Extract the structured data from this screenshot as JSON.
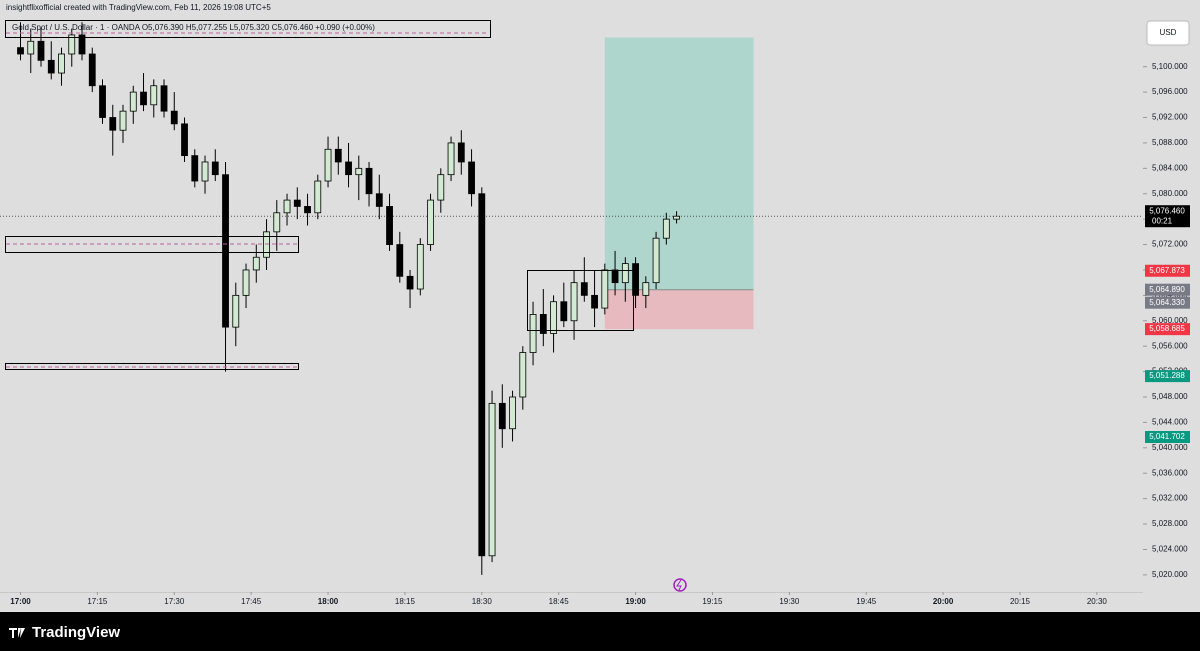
{
  "header": {
    "credit": "insightflixofficial created with TradingView.com, Feb 11, 2026 19:08 UTC+5"
  },
  "footer": {
    "brand": "TradingView"
  },
  "chart_data": {
    "type": "candlestick",
    "legend": "Gold Spot / U.S. Dollar · 1 · OANDA  O5,076.390  H5,077.255  L5,075.320  C5,076.460  +0.090 (+0.00%)",
    "currency": "USD",
    "up_color": "#d2ead2",
    "down_color": "#000000",
    "x": [
      "17:00",
      "17:02",
      "17:04",
      "17:06",
      "17:08",
      "17:10",
      "17:12",
      "17:14",
      "17:16",
      "17:18",
      "17:20",
      "17:22",
      "17:24",
      "17:26",
      "17:28",
      "17:30",
      "17:32",
      "17:34",
      "17:36",
      "17:38",
      "17:40",
      "17:42",
      "17:44",
      "17:46",
      "17:48",
      "17:50",
      "17:52",
      "17:54",
      "17:56",
      "17:58",
      "18:00",
      "18:02",
      "18:04",
      "18:06",
      "18:08",
      "18:10",
      "18:12",
      "18:14",
      "18:16",
      "18:18",
      "18:20",
      "18:22",
      "18:24",
      "18:26",
      "18:28",
      "18:30",
      "18:32",
      "18:34",
      "18:36",
      "18:38",
      "18:40",
      "18:42",
      "18:44",
      "18:46",
      "18:48",
      "18:50",
      "18:52",
      "18:54",
      "18:56",
      "18:58",
      "19:00",
      "19:02",
      "19:04",
      "19:06",
      "19:08"
    ],
    "ohlc": [
      [
        5103,
        5107,
        5101,
        5102
      ],
      [
        5102,
        5106,
        5099,
        5104
      ],
      [
        5104,
        5106,
        5100,
        5101
      ],
      [
        5101,
        5104,
        5098,
        5099
      ],
      [
        5099,
        5103,
        5097,
        5102
      ],
      [
        5102,
        5106,
        5100,
        5105
      ],
      [
        5105,
        5107,
        5101,
        5102
      ],
      [
        5102,
        5103,
        5096,
        5097
      ],
      [
        5097,
        5098,
        5091,
        5092
      ],
      [
        5092,
        5094,
        5086,
        5090
      ],
      [
        5090,
        5094,
        5088,
        5093
      ],
      [
        5093,
        5097,
        5091,
        5096
      ],
      [
        5096,
        5099,
        5093,
        5094
      ],
      [
        5094,
        5098,
        5092,
        5097
      ],
      [
        5097,
        5098,
        5092,
        5093
      ],
      [
        5093,
        5096,
        5090,
        5091
      ],
      [
        5091,
        5092,
        5085,
        5086
      ],
      [
        5086,
        5087,
        5081,
        5082
      ],
      [
        5082,
        5086,
        5080,
        5085
      ],
      [
        5085,
        5087,
        5082,
        5083
      ],
      [
        5083,
        5085,
        5052,
        5059
      ],
      [
        5059,
        5066,
        5056,
        5064
      ],
      [
        5064,
        5069,
        5062,
        5068
      ],
      [
        5068,
        5072,
        5066,
        5070
      ],
      [
        5070,
        5076,
        5068,
        5074
      ],
      [
        5074,
        5079,
        5071,
        5077
      ],
      [
        5077,
        5080,
        5075,
        5079
      ],
      [
        5079,
        5081,
        5076,
        5078
      ],
      [
        5078,
        5080,
        5075,
        5077
      ],
      [
        5077,
        5083,
        5076,
        5082
      ],
      [
        5082,
        5089,
        5081,
        5087
      ],
      [
        5087,
        5089,
        5083,
        5085
      ],
      [
        5085,
        5088,
        5081,
        5083
      ],
      [
        5083,
        5086,
        5079,
        5084
      ],
      [
        5084,
        5085,
        5078,
        5080
      ],
      [
        5080,
        5083,
        5076,
        5078
      ],
      [
        5078,
        5080,
        5071,
        5072
      ],
      [
        5072,
        5074,
        5066,
        5067
      ],
      [
        5067,
        5068,
        5062,
        5065
      ],
      [
        5065,
        5073,
        5064,
        5072
      ],
      [
        5072,
        5080,
        5071,
        5079
      ],
      [
        5079,
        5084,
        5077,
        5083
      ],
      [
        5083,
        5089,
        5082,
        5088
      ],
      [
        5088,
        5090,
        5083,
        5085
      ],
      [
        5085,
        5087,
        5078,
        5080
      ],
      [
        5080,
        5081,
        5020,
        5023
      ],
      [
        5023,
        5049,
        5022,
        5047
      ],
      [
        5047,
        5050,
        5040,
        5043
      ],
      [
        5043,
        5049,
        5041,
        5048
      ],
      [
        5048,
        5056,
        5046,
        5055
      ],
      [
        5055,
        5063,
        5053,
        5061
      ],
      [
        5061,
        5065,
        5056,
        5058
      ],
      [
        5058,
        5064,
        5055,
        5063
      ],
      [
        5063,
        5066,
        5059,
        5060
      ],
      [
        5060,
        5068,
        5057,
        5066
      ],
      [
        5066,
        5070,
        5063,
        5064
      ],
      [
        5064,
        5068,
        5059,
        5062
      ],
      [
        5062,
        5069,
        5061,
        5068
      ],
      [
        5068,
        5071,
        5064,
        5066
      ],
      [
        5066,
        5070,
        5063,
        5069
      ],
      [
        5069,
        5070,
        5062,
        5064
      ],
      [
        5064,
        5067,
        5062,
        5066
      ],
      [
        5066,
        5074,
        5065,
        5073
      ],
      [
        5073,
        5077,
        5072,
        5076
      ],
      [
        5076,
        5077.255,
        5075.32,
        5076.46
      ]
    ],
    "xlim": [
      "16:56",
      "20:39"
    ],
    "xticks": [
      "17:00",
      "17:15",
      "17:30",
      "17:45",
      "18:00",
      "18:15",
      "18:30",
      "18:45",
      "19:00",
      "19:15",
      "19:30",
      "19:45",
      "20:00",
      "20:15",
      "20:30"
    ],
    "ylim": [
      5017.3,
      5110.5
    ],
    "yticks": [
      {
        "value": 5020,
        "label": "5,020.000"
      },
      {
        "value": 5024,
        "label": "5,024.000"
      },
      {
        "value": 5028,
        "label": "5,028.000"
      },
      {
        "value": 5032,
        "label": "5,032.000"
      },
      {
        "value": 5036,
        "label": "5,036.000"
      },
      {
        "value": 5040,
        "label": "5,040.000"
      },
      {
        "value": 5044,
        "label": "5,044.000"
      },
      {
        "value": 5048,
        "label": "5,048.000"
      },
      {
        "value": 5052,
        "label": "5,052.000"
      },
      {
        "value": 5056,
        "label": "5,056.000"
      },
      {
        "value": 5060,
        "label": "5,060.000"
      },
      {
        "value": 5064,
        "label": "5,064.000"
      },
      {
        "value": 5068,
        "label": "5,068.000"
      },
      {
        "value": 5072,
        "label": "5,072.000"
      },
      {
        "value": 5076,
        "label": "5,076.000"
      },
      {
        "value": 5080,
        "label": "5,080.000"
      },
      {
        "value": 5084,
        "label": "5,084.000"
      },
      {
        "value": 5088,
        "label": "5,088.000"
      },
      {
        "value": 5092,
        "label": "5,092.000"
      },
      {
        "value": 5096,
        "label": "5,096.000"
      },
      {
        "value": 5100,
        "label": "5,100.000"
      }
    ],
    "last_price": {
      "value": 5076.46,
      "label": "5,076.460",
      "countdown": "00:21"
    },
    "price_labels": [
      {
        "value": 5067.873,
        "label": "5,067.873",
        "color": "#f23645"
      },
      {
        "value": 5064.89,
        "label": "5,064.890",
        "color": "#787b86"
      },
      {
        "value": 5064.33,
        "label": "5,064.330",
        "color": "#787b86"
      },
      {
        "value": 5058.685,
        "label": "5,058.685",
        "color": "#f23645"
      },
      {
        "value": 5051.288,
        "label": "5,051.288",
        "color": "#089981"
      },
      {
        "value": 5041.702,
        "label": "5,041.702",
        "color": "#089981"
      }
    ],
    "position": {
      "start": "18:54",
      "end": "19:23",
      "target": 5104.6,
      "entry": 5064.89,
      "stop": 5058.685,
      "profit_color": "#9fd3c7",
      "loss_color": "#e8b4b8"
    }
  }
}
